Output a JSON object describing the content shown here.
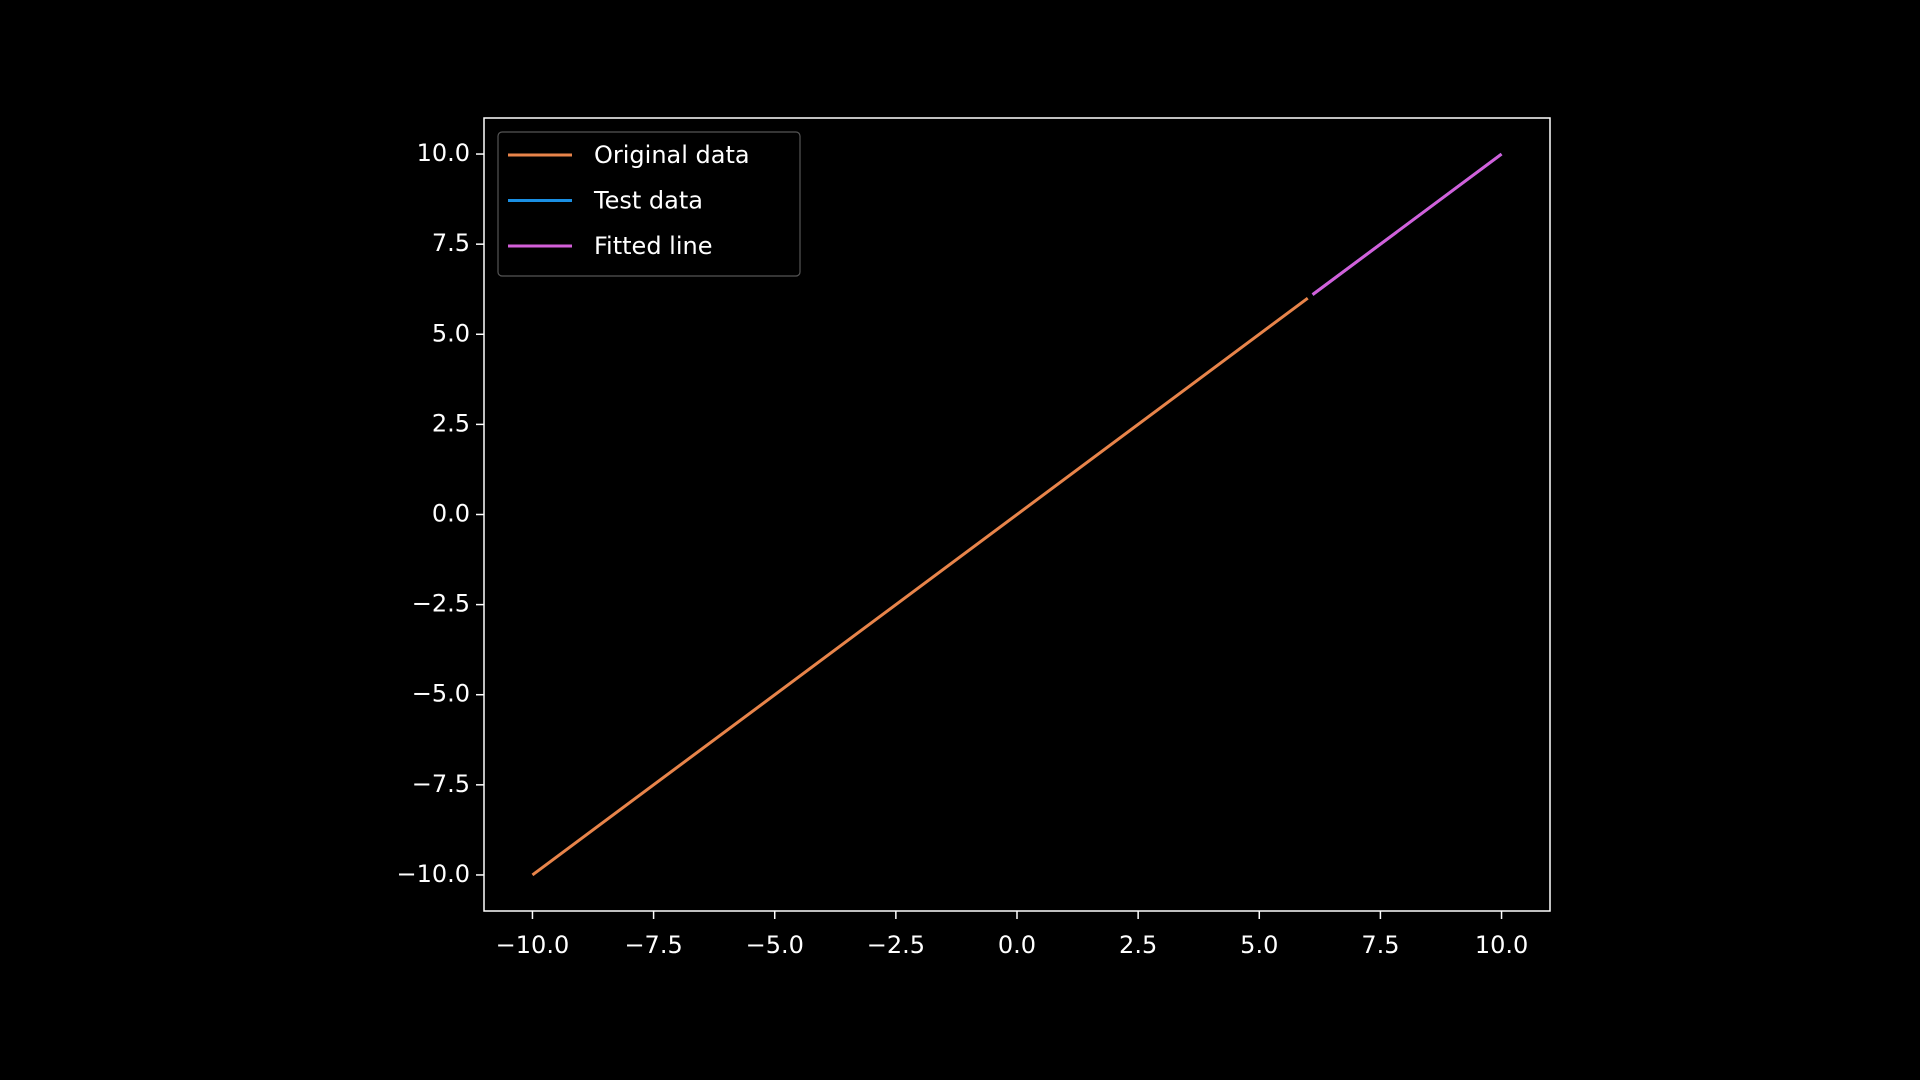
{
  "chart_data": {
    "type": "line",
    "series": [
      {
        "name": "Original data",
        "color": "#e8844a",
        "x": [
          -10,
          6
        ],
        "values": [
          -10,
          6
        ]
      },
      {
        "name": "Test data",
        "color": "#1a8fe3",
        "x": [
          6.1,
          10
        ],
        "values": [
          6.1,
          10
        ]
      },
      {
        "name": "Fitted line",
        "color": "#d35fd8",
        "x": [
          6.1,
          10
        ],
        "values": [
          6.1,
          10
        ]
      }
    ],
    "xlim": [
      -11,
      11
    ],
    "ylim": [
      -11,
      11
    ],
    "xticks": [
      {
        "value": -10,
        "label": "−10.0"
      },
      {
        "value": -7.5,
        "label": "−7.5"
      },
      {
        "value": -5,
        "label": "−5.0"
      },
      {
        "value": -2.5,
        "label": "−2.5"
      },
      {
        "value": 0,
        "label": "0.0"
      },
      {
        "value": 2.5,
        "label": "2.5"
      },
      {
        "value": 5,
        "label": "5.0"
      },
      {
        "value": 7.5,
        "label": "7.5"
      },
      {
        "value": 10,
        "label": "10.0"
      }
    ],
    "yticks": [
      {
        "value": -10,
        "label": "−10.0"
      },
      {
        "value": -7.5,
        "label": "−7.5"
      },
      {
        "value": -5,
        "label": "−5.0"
      },
      {
        "value": -2.5,
        "label": "−2.5"
      },
      {
        "value": 0,
        "label": "0.0"
      },
      {
        "value": 2.5,
        "label": "2.5"
      },
      {
        "value": 5,
        "label": "5.0"
      },
      {
        "value": 7.5,
        "label": "7.5"
      },
      {
        "value": 10,
        "label": "10.0"
      }
    ],
    "grid": false,
    "legend": "upper left"
  }
}
